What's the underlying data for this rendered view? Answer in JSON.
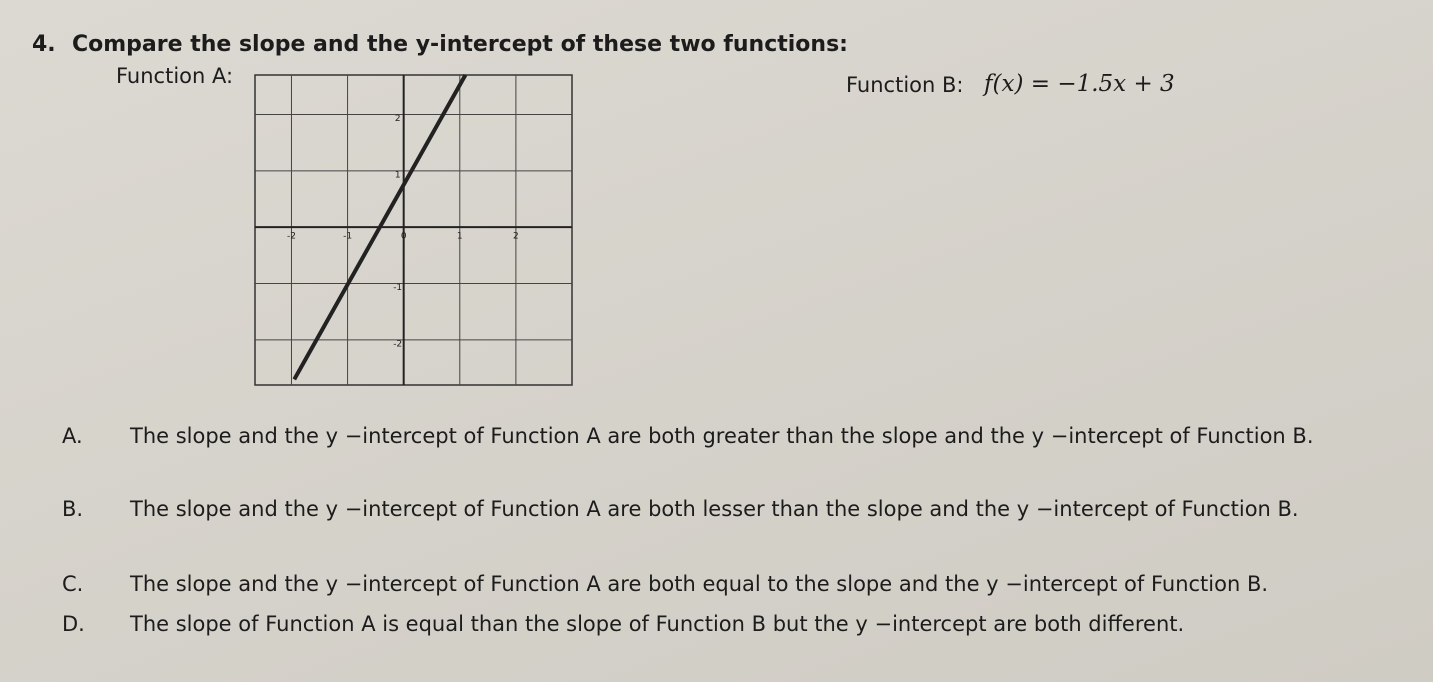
{
  "question": {
    "number": "4.",
    "text": "Compare the slope and the y-intercept of these two functions:"
  },
  "function_a": {
    "label": "Function A:",
    "graph": {
      "xlim": [
        -2.65,
        3
      ],
      "ylim": [
        -2.8,
        2.7
      ],
      "xticks": [
        -2,
        -1,
        0,
        1,
        2
      ],
      "yticks": [
        -2,
        -1,
        1,
        2
      ],
      "line": {
        "x": [
          -1.95,
          1.1
        ],
        "y": [
          -2.7,
          2.7
        ]
      }
    }
  },
  "function_b": {
    "label": "Function B:",
    "equation": "f(x) = −1.5x + 3"
  },
  "options": [
    {
      "letter": "A.",
      "text": "The slope and the y −intercept of Function A are both greater than the slope and the y −intercept of Function B."
    },
    {
      "letter": "B.",
      "text": "The slope and the y −intercept of Function A are both lesser than the slope and the y −intercept of Function B."
    },
    {
      "letter": "C.",
      "text": "The slope and the y −intercept of Function A are both equal to the slope and the y −intercept of Function B."
    },
    {
      "letter": "D.",
      "text": "The slope of Function A is equal than the slope of Function B but the y −intercept are both different."
    }
  ]
}
